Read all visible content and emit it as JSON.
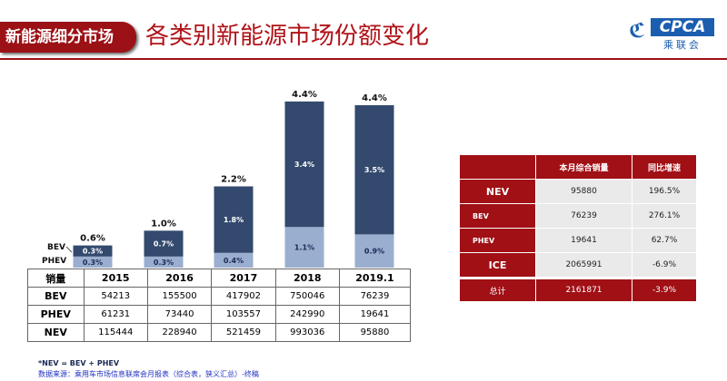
{
  "header": {
    "tag": "新能源细分市场",
    "title": "各类别新能源市场份额变化",
    "logo": "CPCA 乘联会"
  },
  "chart_data": {
    "type": "bar",
    "stacked": true,
    "categories": [
      "2015",
      "2016",
      "2017",
      "2018",
      "2019.1"
    ],
    "series": [
      {
        "name": "PHEV",
        "values": [
          0.3,
          0.3,
          0.4,
          1.1,
          0.9
        ],
        "labels": [
          "0.3%",
          "0.3%",
          "0.4%",
          "1.1%",
          "0.9%"
        ],
        "color": "#9aaed0"
      },
      {
        "name": "BEV",
        "values": [
          0.3,
          0.7,
          1.8,
          3.4,
          3.5
        ],
        "labels": [
          "0.3%",
          "0.7%",
          "1.8%",
          "3.4%",
          "3.5%"
        ],
        "color": "#33496d"
      }
    ],
    "totals": [
      "0.6%",
      "1.0%",
      "2.2%",
      "4.4%",
      "4.4%"
    ],
    "total_values": [
      0.6,
      1.0,
      2.2,
      4.4,
      4.4
    ]
  },
  "sales_table": {
    "corner": "销量",
    "columns": [
      "2015",
      "2016",
      "2017",
      "2018",
      "2019.1"
    ],
    "rows": [
      {
        "label": "BEV",
        "values": [
          "54213",
          "155500",
          "417902",
          "750046",
          "76239"
        ]
      },
      {
        "label": "PHEV",
        "values": [
          "61231",
          "73440",
          "103557",
          "242990",
          "19641"
        ]
      },
      {
        "label": "NEV",
        "values": [
          "115444",
          "228940",
          "521459",
          "993036",
          "95880"
        ]
      }
    ]
  },
  "month_table": {
    "headers": [
      "",
      "本月综合销量",
      "同比增速"
    ],
    "rows": [
      {
        "label": "NEV",
        "sales": "95880",
        "growth": "196.5%"
      },
      {
        "label": "BEV",
        "sales": "76239",
        "growth": "276.1%"
      },
      {
        "label": "PHEV",
        "sales": "19641",
        "growth": "62.7%"
      },
      {
        "label": "ICE",
        "sales": "2065991",
        "growth": "-6.9%"
      }
    ],
    "total": {
      "label": "总计",
      "sales": "2161871",
      "growth": "-3.9%"
    }
  },
  "footnote": "*NEV = BEV + PHEV",
  "source": "数据来源：乘用车市场信息联席会月报表（综合表，狭义汇总）-终稿"
}
